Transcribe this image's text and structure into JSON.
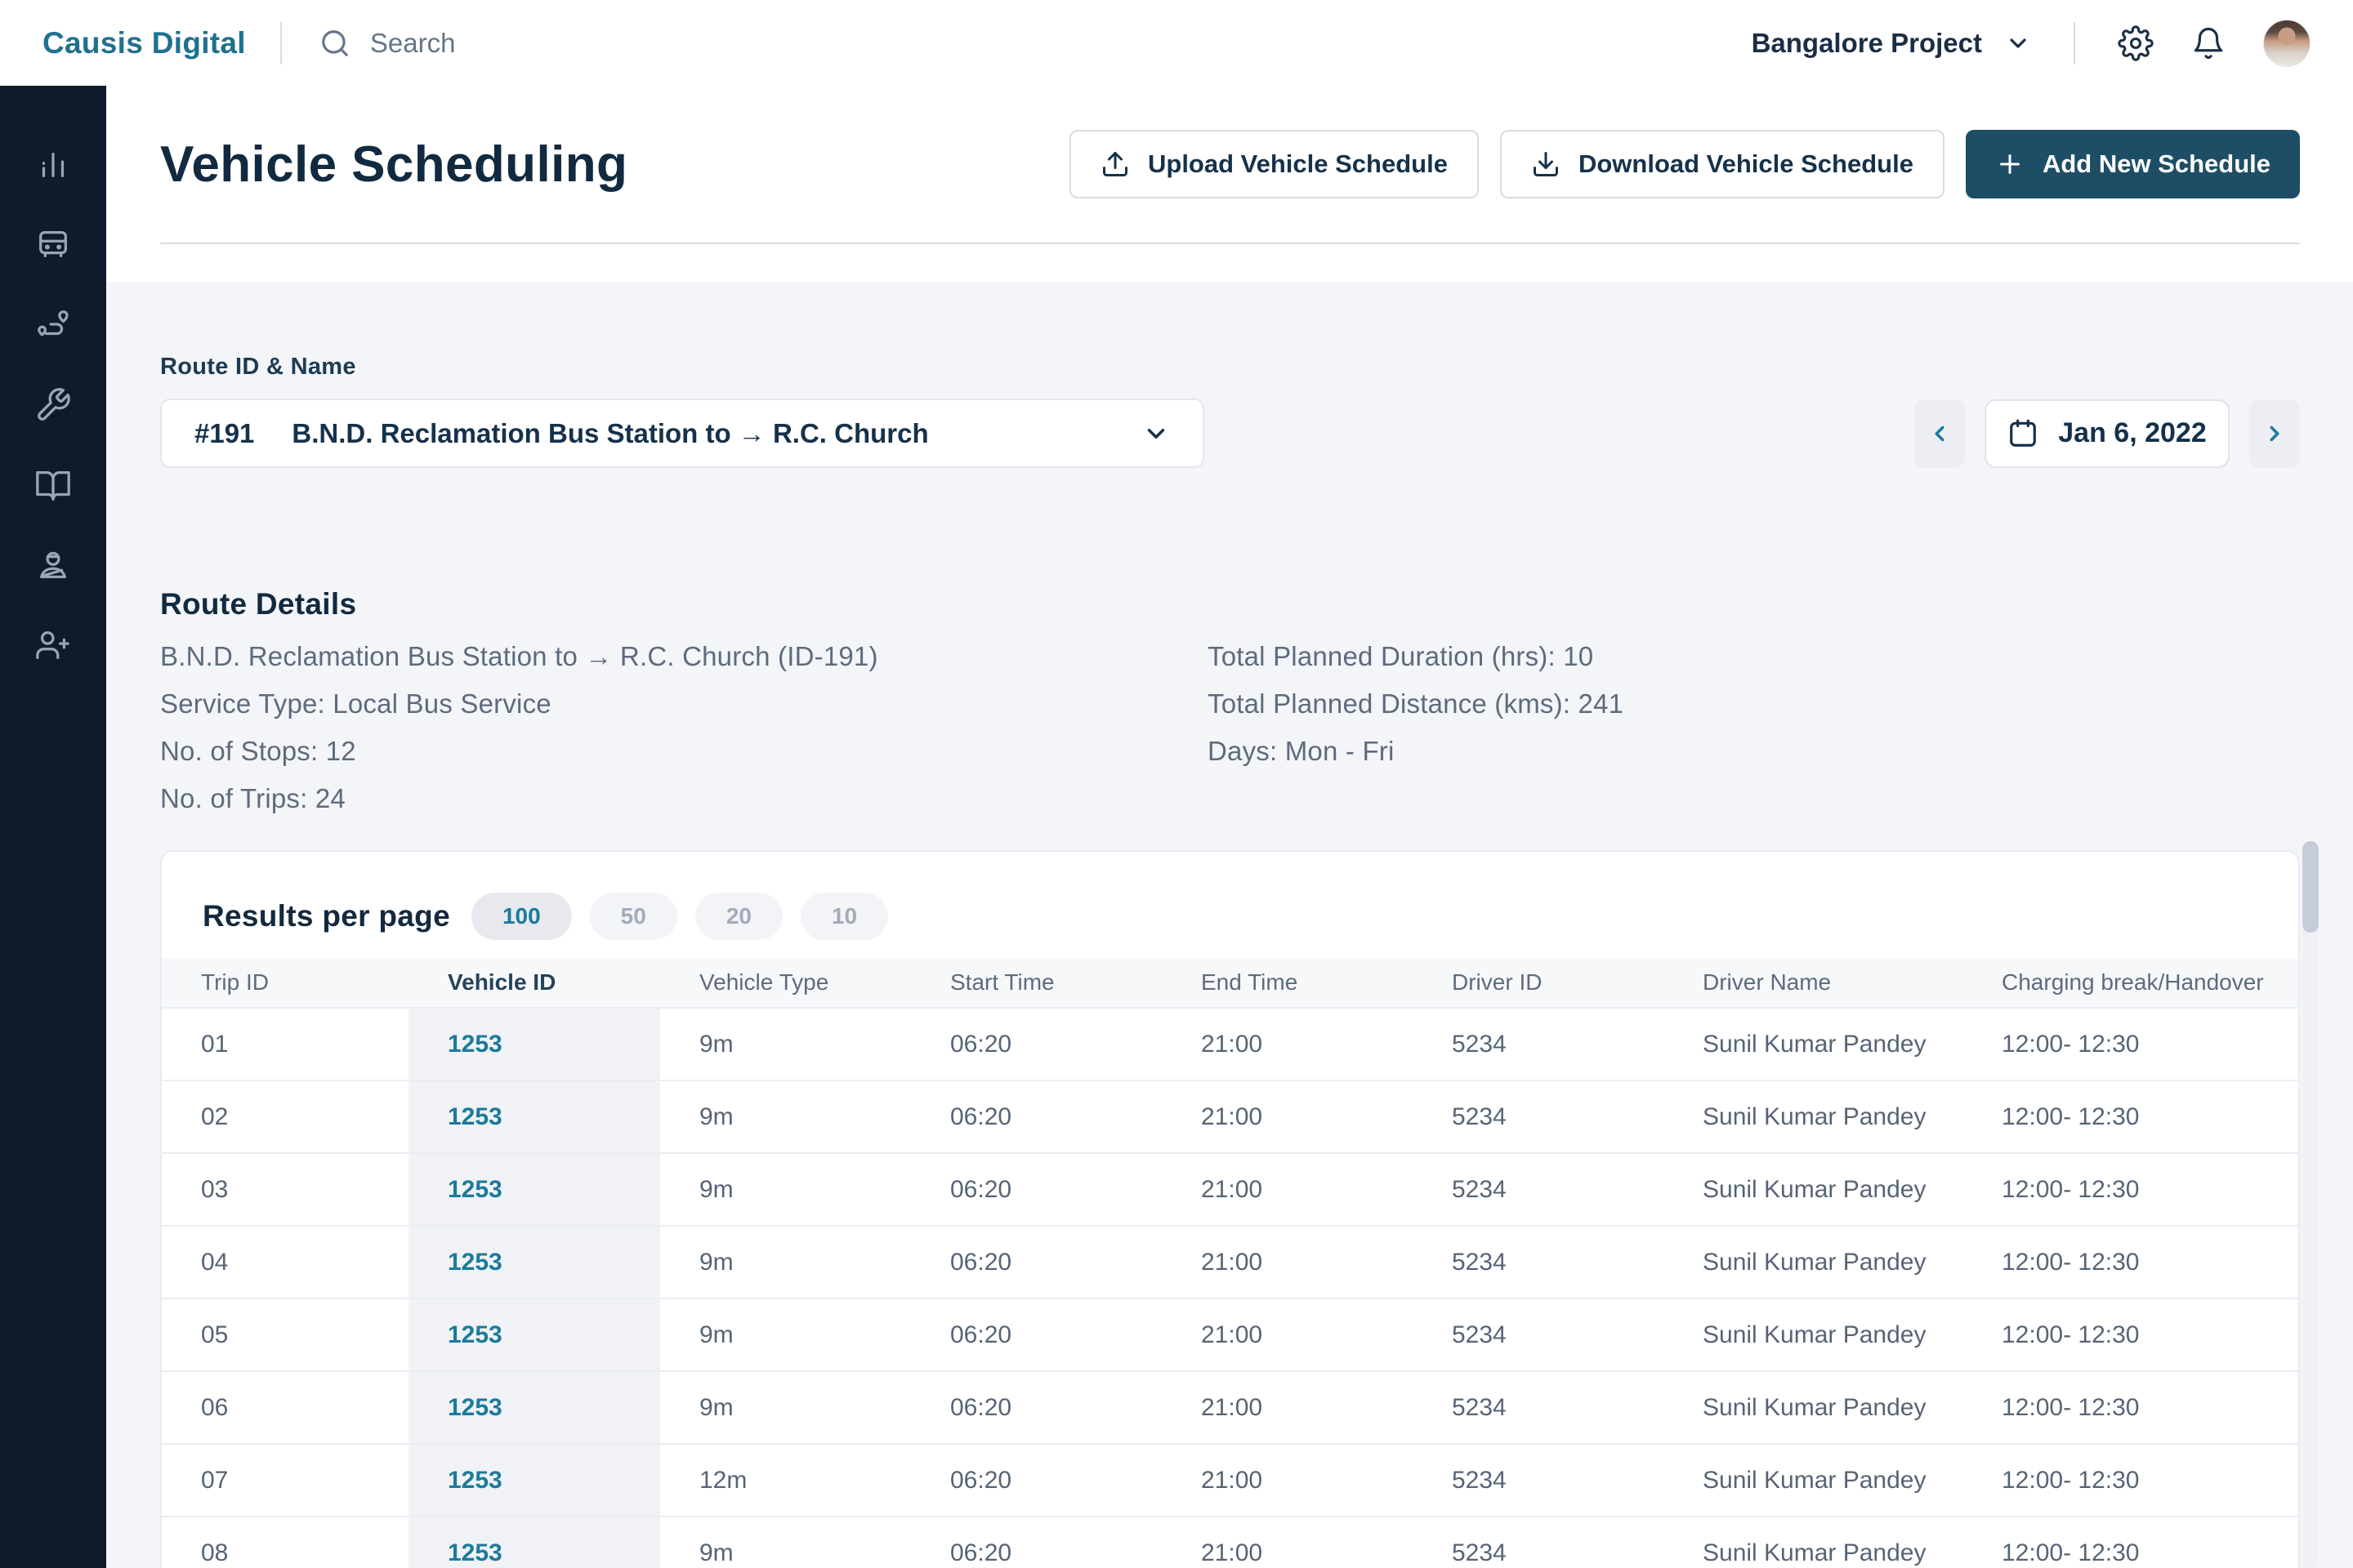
{
  "topbar": {
    "brand": "Causis Digital",
    "search_placeholder": "Search",
    "project_selector": "Bangalore Project"
  },
  "sidebar": {
    "items": [
      {
        "name": "analytics",
        "icon": "bar-chart-icon"
      },
      {
        "name": "fleet",
        "icon": "bus-icon"
      },
      {
        "name": "routes",
        "icon": "route-icon"
      },
      {
        "name": "maintenance",
        "icon": "wrench-icon"
      },
      {
        "name": "guide",
        "icon": "book-icon"
      },
      {
        "name": "drivers",
        "icon": "driver-icon"
      },
      {
        "name": "add-user",
        "icon": "user-plus-icon"
      }
    ]
  },
  "header": {
    "title": "Vehicle Scheduling",
    "upload_label": "Upload Vehicle Schedule",
    "download_label": "Download Vehicle Schedule",
    "add_label": "Add New Schedule"
  },
  "route_selector": {
    "label": "Route ID & Name",
    "route_id": "#191",
    "route_name": "B.N.D. Reclamation Bus Station to → R.C. Church",
    "date": "Jan 6, 2022"
  },
  "route_details": {
    "heading": "Route Details",
    "left": [
      "B.N.D. Reclamation Bus Station to → R.C. Church (ID-191)",
      "Service Type: Local Bus Service",
      "No. of Stops: 12",
      "No. of Trips: 24"
    ],
    "right": [
      "Total Planned Duration (hrs): 10",
      "Total Planned Distance (kms): 241",
      "Days: Mon - Fri"
    ]
  },
  "table": {
    "results_per_page_label": "Results per page",
    "page_size_options": [
      "100",
      "50",
      "20",
      "10"
    ],
    "selected_page_size": "100",
    "columns": [
      "Trip ID",
      "Vehicle ID",
      "Vehicle Type",
      "Start Time",
      "End Time",
      "Driver ID",
      "Driver Name",
      "Charging break/Handover"
    ],
    "rows": [
      [
        "01",
        "1253",
        "9m",
        "06:20",
        "21:00",
        "5234",
        "Sunil Kumar Pandey",
        "12:00- 12:30"
      ],
      [
        "02",
        "1253",
        "9m",
        "06:20",
        "21:00",
        "5234",
        "Sunil Kumar Pandey",
        "12:00- 12:30"
      ],
      [
        "03",
        "1253",
        "9m",
        "06:20",
        "21:00",
        "5234",
        "Sunil Kumar Pandey",
        "12:00- 12:30"
      ],
      [
        "04",
        "1253",
        "9m",
        "06:20",
        "21:00",
        "5234",
        "Sunil Kumar Pandey",
        "12:00- 12:30"
      ],
      [
        "05",
        "1253",
        "9m",
        "06:20",
        "21:00",
        "5234",
        "Sunil Kumar Pandey",
        "12:00- 12:30"
      ],
      [
        "06",
        "1253",
        "9m",
        "06:20",
        "21:00",
        "5234",
        "Sunil Kumar Pandey",
        "12:00- 12:30"
      ],
      [
        "07",
        "1253",
        "12m",
        "06:20",
        "21:00",
        "5234",
        "Sunil Kumar Pandey",
        "12:00- 12:30"
      ],
      [
        "08",
        "1253",
        "9m",
        "06:20",
        "21:00",
        "5234",
        "Sunil Kumar Pandey",
        "12:00- 12:30"
      ]
    ]
  },
  "colors": {
    "accent_teal": "#1b7a9c",
    "brand_teal": "#20718f",
    "sidebar_bg": "#0f1a2b",
    "primary_button_bg": "#1d4e66",
    "heading_text": "#112a40",
    "body_text": "#5d6b7e",
    "content_bg": "#f3f5f8",
    "vehicle_id_column_bg": "#f0f2f6"
  }
}
